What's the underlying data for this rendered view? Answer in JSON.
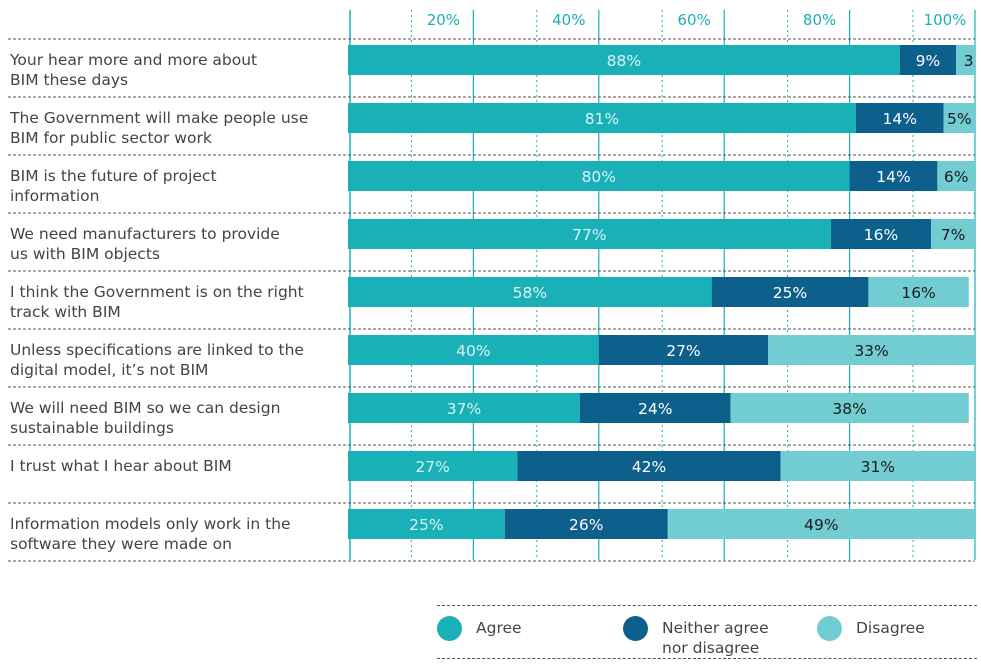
{
  "chart_data": {
    "type": "bar",
    "stacked": true,
    "orientation": "horizontal",
    "xlim": [
      0,
      100
    ],
    "x_ticks": [
      "20%",
      "40%",
      "60%",
      "80%",
      "100%"
    ],
    "categories": [
      [
        "Your hear more and more about",
        "BIM these days"
      ],
      [
        "The Government will make people use",
        "BIM for public sector work"
      ],
      [
        "BIM is the future of project",
        "information"
      ],
      [
        "We need manufacturers to provide",
        "us with BIM objects"
      ],
      [
        "I think the Government is on the right",
        "track with BIM"
      ],
      [
        "Unless specifications are linked to the",
        "digital model, it’s not BIM"
      ],
      [
        "We will need BIM so we can design",
        "sustainable buildings"
      ],
      [
        "I trust what I hear about BIM"
      ],
      [
        "Information models only work in the",
        "software they were made on"
      ]
    ],
    "series": [
      {
        "name": "Agree",
        "color": "#1ab0b8",
        "values": [
          88,
          81,
          80,
          77,
          58,
          40,
          37,
          27,
          25
        ],
        "labels": [
          "88%",
          "81%",
          "80%",
          "77%",
          "58%",
          "40%",
          "37%",
          "27%",
          "25%"
        ]
      },
      {
        "name": "Neither agree nor disagree",
        "color": "#0d5f8c",
        "values": [
          9,
          14,
          14,
          16,
          25,
          27,
          24,
          42,
          26
        ],
        "labels": [
          "9%",
          "14%",
          "14%",
          "16%",
          "25%",
          "27%",
          "24%",
          "42%",
          "26%"
        ]
      },
      {
        "name": "Disagree",
        "color": "#72cdd3",
        "values": [
          3,
          5,
          6,
          7,
          16,
          33,
          38,
          31,
          49
        ],
        "labels": [
          "3",
          "5%",
          "6%",
          "7%",
          "16%",
          "33%",
          "38%",
          "31%",
          "49%"
        ]
      }
    ],
    "legend": {
      "position": "bottom-right",
      "items": [
        {
          "label": [
            "Agree"
          ],
          "color": "#1ab0b8"
        },
        {
          "label": [
            "Neither agree",
            "nor disagree"
          ],
          "color": "#0d5f8c"
        },
        {
          "label": [
            "Disagree"
          ],
          "color": "#72cdd3"
        }
      ]
    }
  }
}
